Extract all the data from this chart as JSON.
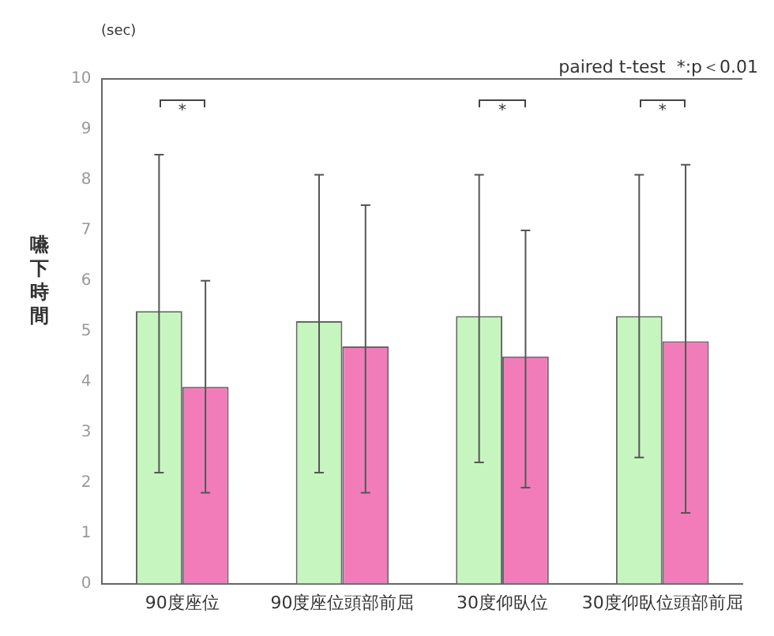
{
  "chart_data": {
    "type": "bar",
    "ylabel": "嚥下時間",
    "categories": [
      "90度座位",
      "90度座位頭部前屈",
      "30度仰臥位",
      "30度仰臥位頭部前屈"
    ],
    "series": [
      {
        "color": "#c6f5bf",
        "values": [
          5.4,
          5.2,
          5.3,
          5.3
        ],
        "errors": [
          [
            2.2,
            8.5
          ],
          [
            2.2,
            8.1
          ],
          [
            2.4,
            8.1
          ],
          [
            2.5,
            8.1
          ]
        ]
      },
      {
        "color": "#f27cba",
        "values": [
          3.9,
          4.7,
          4.5,
          4.8
        ],
        "errors": [
          [
            1.8,
            6.0
          ],
          [
            1.8,
            7.5
          ],
          [
            1.9,
            7.0
          ],
          [
            1.4,
            8.3
          ]
        ]
      }
    ],
    "ylim": [
      0,
      10
    ],
    "yticks": [
      0,
      1,
      2,
      3,
      4,
      5,
      6,
      7,
      8,
      9,
      10
    ],
    "grid": false,
    "legend": false,
    "annotations": [
      "(sec)",
      "paired t-test  *:p＜0.01",
      "*",
      "*",
      "*"
    ]
  }
}
